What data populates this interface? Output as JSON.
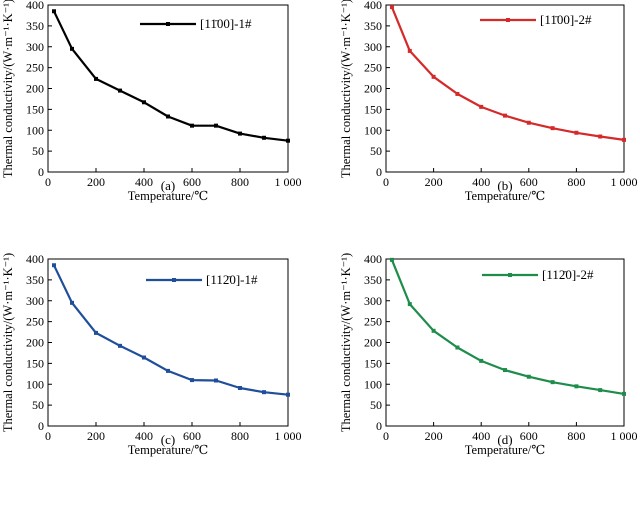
{
  "chart_data": [
    {
      "type": "line",
      "panel_label": "(a)",
      "xlabel": "Temperature/℃",
      "ylabel": "Thermal conductivity/(W·m⁻¹·K⁻¹)",
      "xlim": [
        0,
        1000
      ],
      "ylim": [
        0,
        400
      ],
      "xticks": [
        0,
        200,
        400,
        600,
        800,
        1000
      ],
      "xtick_labels": [
        "0",
        "200",
        "400",
        "600",
        "800",
        "1 000"
      ],
      "yticks": [
        0,
        50,
        100,
        150,
        200,
        250,
        300,
        350,
        400
      ],
      "ytick_labels": [
        "0",
        "50",
        "100",
        "150",
        "200",
        "250",
        "300",
        "350",
        "400"
      ],
      "grid": false,
      "legend_position": "top-right",
      "series": [
        {
          "name": "[11̄00]-1#",
          "color": "#000000",
          "x": [
            25,
            100,
            200,
            300,
            400,
            500,
            600,
            700,
            800,
            900,
            1000
          ],
          "y": [
            385,
            295,
            223,
            195,
            167,
            133,
            111,
            111,
            92,
            82,
            75
          ]
        }
      ]
    },
    {
      "type": "line",
      "panel_label": "(b)",
      "xlabel": "Temperature/℃",
      "ylabel": "Thermal conductivity/(W·m⁻¹·K⁻¹)",
      "xlim": [
        0,
        1000
      ],
      "ylim": [
        0,
        400
      ],
      "xticks": [
        0,
        200,
        400,
        600,
        800,
        1000
      ],
      "xtick_labels": [
        "0",
        "200",
        "400",
        "600",
        "800",
        "1 000"
      ],
      "yticks": [
        0,
        50,
        100,
        150,
        200,
        250,
        300,
        350,
        400
      ],
      "ytick_labels": [
        "0",
        "50",
        "100",
        "150",
        "200",
        "250",
        "300",
        "350",
        "400"
      ],
      "grid": false,
      "legend_position": "top-right",
      "series": [
        {
          "name": "[11̄00]-2#",
          "color": "#d42a2a",
          "x": [
            25,
            100,
            200,
            300,
            400,
            500,
            600,
            700,
            800,
            900,
            1000
          ],
          "y": [
            395,
            290,
            228,
            187,
            156,
            135,
            118,
            105,
            94,
            85,
            77
          ]
        }
      ]
    },
    {
      "type": "line",
      "panel_label": "(c)",
      "xlabel": "Temperature/℃",
      "ylabel": "Thermal conductivity/(W·m⁻¹·K⁻¹)",
      "xlim": [
        0,
        1000
      ],
      "ylim": [
        0,
        400
      ],
      "xticks": [
        0,
        200,
        400,
        600,
        800,
        1000
      ],
      "xtick_labels": [
        "0",
        "200",
        "400",
        "600",
        "800",
        "1 000"
      ],
      "yticks": [
        0,
        50,
        100,
        150,
        200,
        250,
        300,
        350,
        400
      ],
      "ytick_labels": [
        "0",
        "50",
        "100",
        "150",
        "200",
        "250",
        "300",
        "350",
        "400"
      ],
      "grid": false,
      "legend_position": "top-right",
      "series": [
        {
          "name": "[112̄0]-1#",
          "color": "#1f4e9a",
          "x": [
            25,
            100,
            200,
            300,
            400,
            500,
            600,
            700,
            800,
            900,
            1000
          ],
          "y": [
            385,
            295,
            223,
            192,
            164,
            132,
            110,
            109,
            91,
            81,
            75
          ]
        }
      ]
    },
    {
      "type": "line",
      "panel_label": "(d)",
      "xlabel": "Temperature/℃",
      "ylabel": "Thermal conductivity/(W·m⁻¹·K⁻¹)",
      "xlim": [
        0,
        1000
      ],
      "ylim": [
        0,
        400
      ],
      "xticks": [
        0,
        200,
        400,
        600,
        800,
        1000
      ],
      "xtick_labels": [
        "0",
        "200",
        "400",
        "600",
        "800",
        "1 000"
      ],
      "yticks": [
        0,
        50,
        100,
        150,
        200,
        250,
        300,
        350,
        400
      ],
      "ytick_labels": [
        "0",
        "50",
        "100",
        "150",
        "200",
        "250",
        "300",
        "350",
        "400"
      ],
      "grid": false,
      "legend_position": "top-right",
      "series": [
        {
          "name": "[112̄0]-2#",
          "color": "#1e8c4a",
          "x": [
            25,
            100,
            200,
            300,
            400,
            500,
            600,
            700,
            800,
            900,
            1000
          ],
          "y": [
            398,
            292,
            228,
            188,
            156,
            134,
            118,
            105,
            95,
            86,
            77
          ]
        }
      ]
    }
  ]
}
